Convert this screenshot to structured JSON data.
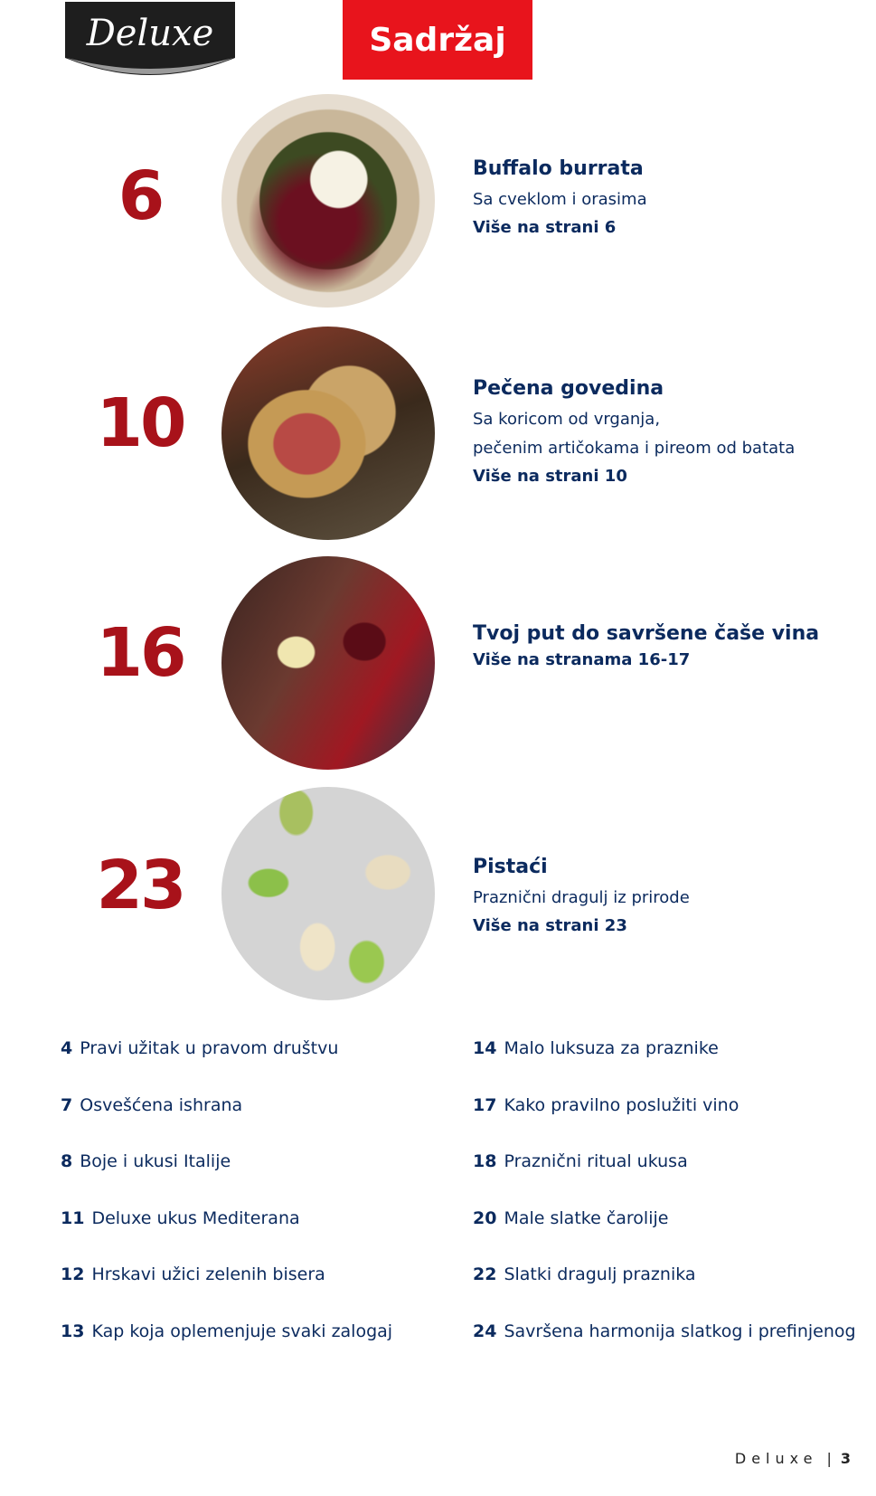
{
  "header": {
    "logo_text": "Deluxe",
    "title": "Sadržaj"
  },
  "features": [
    {
      "page": "6",
      "title": "Buffalo burrata",
      "subtitle": [
        "Sa cveklom i orasima"
      ],
      "more": "Više na strani 6",
      "image": "burrata-salad"
    },
    {
      "page": "10",
      "title": "Pečena govedina",
      "subtitle": [
        "Sa koricom od vrganja,",
        "pečenim artičokama i pireom od batata"
      ],
      "more": "Više na strani 10",
      "image": "roast-beef"
    },
    {
      "page": "16",
      "title": "Tvoj put do savršene čaše vina",
      "subtitle": [],
      "more": "Više na stranama 16-17",
      "image": "wine-glasses"
    },
    {
      "page": "23",
      "title": "Pistaći",
      "subtitle": [
        "Praznični dragulj iz prirode"
      ],
      "more": "Više na strani 23",
      "image": "pistachios"
    }
  ],
  "toc_left": [
    {
      "page": "4",
      "title": "Pravi užitak u pravom društvu"
    },
    {
      "page": "7",
      "title": "Osvešćena ishrana"
    },
    {
      "page": "8",
      "title": "Boje i ukusi Italije"
    },
    {
      "page": "11",
      "title": "Deluxe ukus Mediterana"
    },
    {
      "page": "12",
      "title": "Hrskavi užici zelenih bisera"
    },
    {
      "page": "13",
      "title": "Kap koja oplemenjuje svaki zalogaj"
    }
  ],
  "toc_right": [
    {
      "page": "14",
      "title": "Malo luksuza za praznike"
    },
    {
      "page": "17",
      "title": "Kako pravilno poslužiti vino"
    },
    {
      "page": "18",
      "title": "Praznični ritual ukusa"
    },
    {
      "page": "20",
      "title": "Male slatke čarolije"
    },
    {
      "page": "22",
      "title": "Slatki dragulj praznika"
    },
    {
      "page": "24",
      "title": "Savršena harmonija slatkog i prefinjenog"
    }
  ],
  "footer": {
    "brand": "Deluxe",
    "page": "3"
  },
  "colors": {
    "accent_red": "#e8141c",
    "number_red": "#a8121a",
    "navy": "#0b2a5e"
  }
}
